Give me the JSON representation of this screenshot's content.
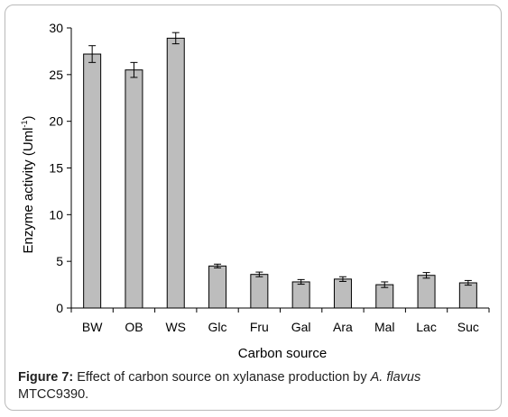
{
  "chart_data": {
    "type": "bar",
    "categories": [
      "BW",
      "OB",
      "WS",
      "Glc",
      "Fru",
      "Gal",
      "Ara",
      "Mal",
      "Lac",
      "Suc"
    ],
    "series": [
      {
        "values": [
          27.2,
          25.5,
          28.9,
          4.5,
          3.6,
          2.8,
          3.1,
          2.5,
          3.5,
          2.7
        ],
        "errors": [
          0.9,
          0.8,
          0.6,
          0.2,
          0.25,
          0.25,
          0.25,
          0.3,
          0.3,
          0.25
        ],
        "color": "#bdbdbd"
      }
    ],
    "xlabel": "Carbon source",
    "ylabel_main": "Enzyme activity (Uml",
    "ylabel_sup": "-1",
    "ylabel_close": ")",
    "ylim": [
      0,
      30
    ],
    "yticks": [
      0,
      5,
      10,
      15,
      20,
      25,
      30
    ],
    "grid": false
  },
  "caption": {
    "label": "Figure 7:",
    "text_before": " Effect of carbon source on xylanase production by ",
    "species": "A. flavus",
    "text_after": " MTCC9390."
  }
}
